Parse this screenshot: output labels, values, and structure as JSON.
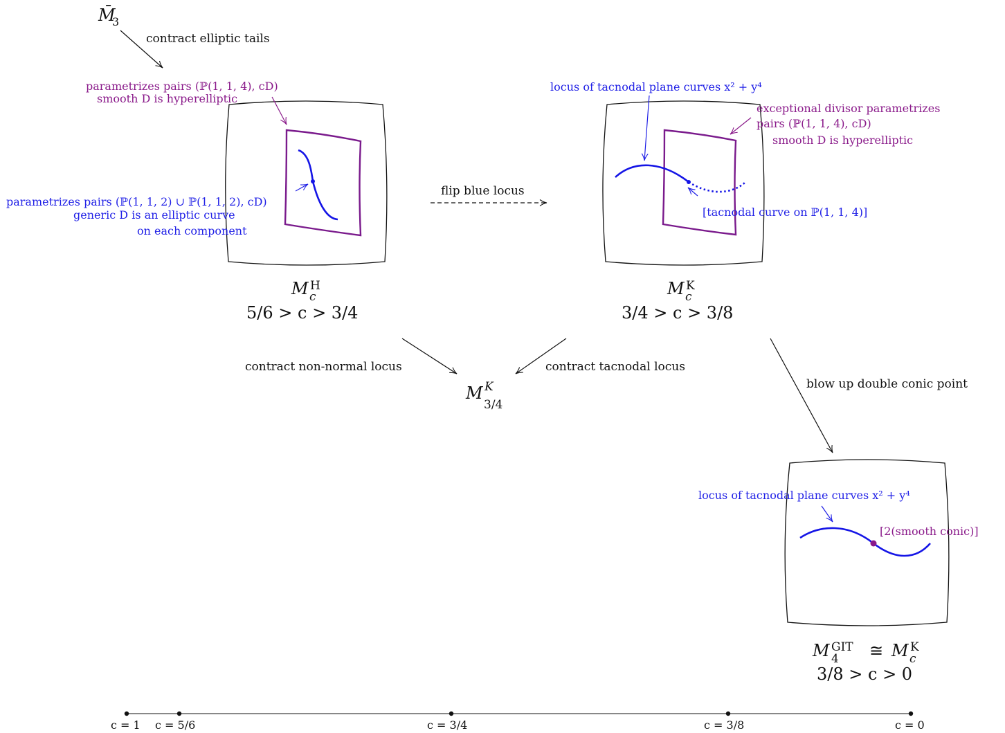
{
  "top_space": {
    "label": "M̄",
    "sub": "3"
  },
  "arrows": {
    "contract_elliptic": "contract elliptic tails",
    "flip": "flip blue locus",
    "contract_non_normal": "contract non-normal locus",
    "contract_tacnodal": "contract tacnodal locus",
    "blow_up": "blow up double conic point"
  },
  "panel_h": {
    "purple_line1": "parametrizes pairs (ℙ(1, 1, 4), cD)",
    "purple_line2": "smooth D is hyperelliptic",
    "blue_line1": "parametrizes pairs (ℙ(1, 1, 2) ∪ ℙ(1, 1, 2), cD)",
    "blue_line2": "generic D is an elliptic curve",
    "blue_line3": "on each component",
    "name_M": "M",
    "name_sub": "c",
    "name_sup": "H",
    "range": "5/6 > c > 3/4"
  },
  "panel_k": {
    "blue_top": "locus of tacnodal plane curves x² + y⁴",
    "purple_line1": "exceptional divisor parametrizes",
    "purple_line2": "pairs (ℙ(1, 1, 4), cD)",
    "purple_line3": "smooth D is hyperelliptic",
    "blue_bracket": "[tacnodal curve on ℙ(1, 1, 4)]",
    "name_M": "M",
    "name_sub": "c",
    "name_sup": "K",
    "range": "3/4 > c > 3/8"
  },
  "middle": {
    "name_M": "M",
    "name_sub": "3/4",
    "name_sup": "K"
  },
  "panel_git": {
    "blue_label": "locus of tacnodal plane curves x² + y⁴",
    "purple_point": "[2(smooth conic)]",
    "name_M": "M",
    "name_sub": "4",
    "name_sup": "GIT",
    "cong": "≅",
    "name_M2": "M",
    "name_sub2": "c",
    "name_sup2": "K",
    "range": "3/8 > c > 0"
  },
  "axis": {
    "ticks": [
      {
        "label": "c = 1",
        "value": 1.0
      },
      {
        "label": "c = 5/6",
        "value": 0.8333
      },
      {
        "label": "c = 3/4",
        "value": 0.75
      },
      {
        "label": "c = 3/8",
        "value": 0.375
      },
      {
        "label": "c = 0",
        "value": 0.0
      }
    ]
  },
  "colors": {
    "blue": "#1f1fe6",
    "purple": "#8a1a8a",
    "black": "#111111",
    "axis": "#888888"
  }
}
